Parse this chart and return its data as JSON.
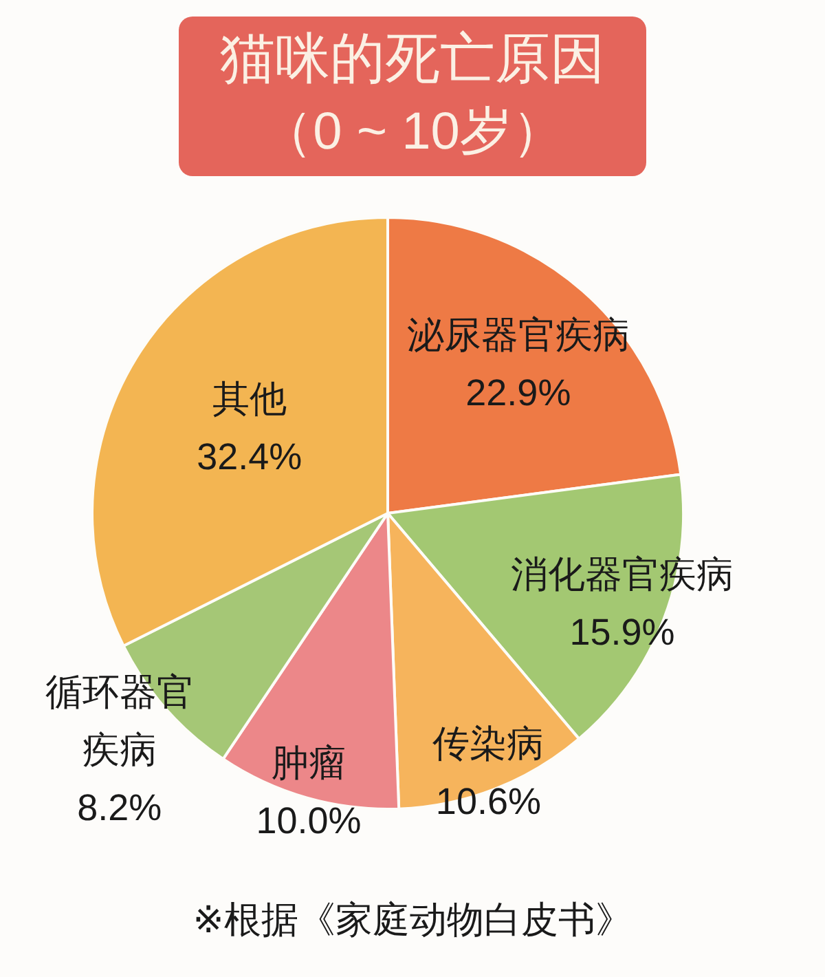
{
  "chart_data": {
    "type": "pie",
    "title": "猫咪的死亡原因",
    "subtitle": "（0 ~ 10岁）",
    "categories": [
      "泌尿器官疾病",
      "消化器官疾病",
      "传染病",
      "肿瘤",
      "循环器官疾病",
      "其他"
    ],
    "values": [
      22.9,
      15.9,
      10.6,
      10.0,
      8.2,
      32.4
    ],
    "colors": [
      "#ee7a45",
      "#a3c872",
      "#f6b45c",
      "#ec8789",
      "#a5c776",
      "#f3b552"
    ],
    "value_labels": [
      "22.9%",
      "15.9%",
      "10.6%",
      "10.0%",
      "8.2%",
      "32.4%"
    ],
    "annotations": [
      "※根据《家庭动物白皮书》"
    ]
  }
}
